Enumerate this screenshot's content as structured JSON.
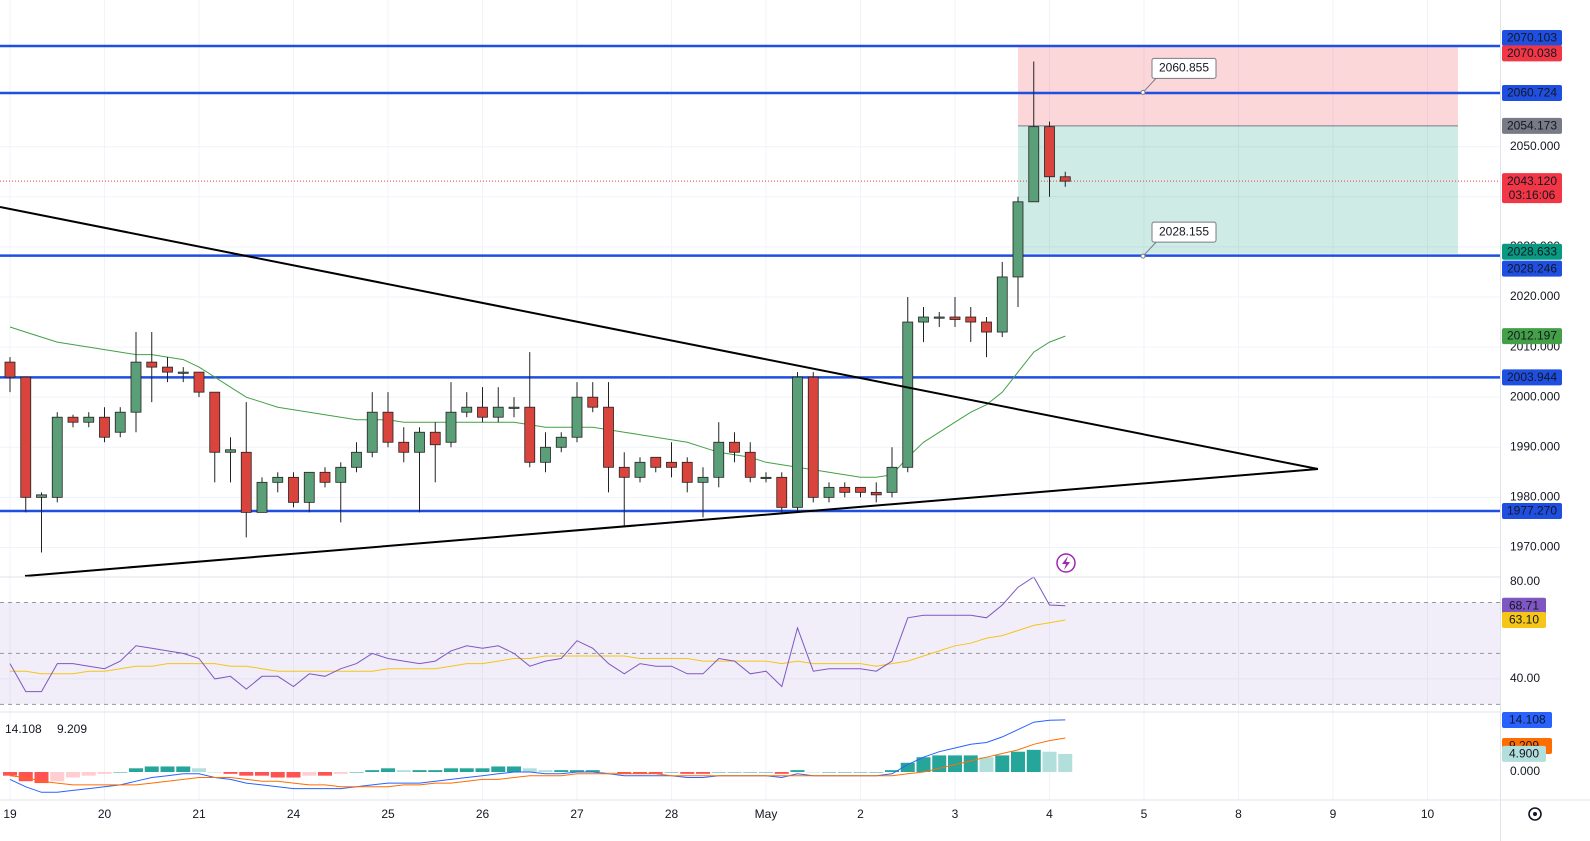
{
  "chart_data": [
    {
      "type": "candlestick",
      "x_labels": [
        "19",
        "20",
        "21",
        "24",
        "25",
        "26",
        "27",
        "28",
        "May",
        "2",
        "3",
        "4",
        "5",
        "8",
        "9",
        "10"
      ],
      "open": [
        2007,
        2004,
        1980,
        1980,
        1996,
        1995,
        1996,
        1993,
        1997,
        2007,
        2006,
        2005,
        2005,
        2001,
        1989,
        1989,
        1977,
        1983,
        1984,
        1979,
        1985,
        1983,
        1986,
        1989,
        1997,
        1991,
        1989,
        1993,
        1991,
        1997,
        1998,
        1996,
        1998,
        1998,
        1987,
        1990,
        1992,
        2000,
        1998,
        1986,
        1984,
        1988,
        1987,
        1987,
        1983,
        1984,
        1991,
        1989,
        1984,
        1984,
        1978,
        2004,
        1980,
        1982,
        1982,
        1981,
        1981,
        1986,
        2015,
        2016,
        2016,
        2016,
        2015,
        2013,
        2024,
        2039,
        2054,
        2044
      ],
      "high": [
        2008,
        2004,
        1981,
        1997,
        1996.5,
        1997,
        1998,
        1998,
        2013,
        2013,
        2008,
        2006,
        2005,
        2001,
        1992,
        1999,
        1984,
        1985,
        1985,
        1985,
        1986,
        1987,
        1991,
        2001,
        2001,
        1994,
        1994,
        1995,
        2003,
        2001,
        2002,
        2002,
        2000,
        2009,
        1993,
        1993,
        2003,
        2003,
        2003,
        1989,
        1988,
        1988,
        1991,
        1988,
        1986,
        1995,
        1993,
        1991,
        1985,
        1985,
        2005,
        2005,
        1983,
        1983,
        1982,
        1983,
        1990,
        2020,
        2018,
        2017,
        2020,
        2018,
        2016,
        2027,
        2040,
        2067,
        2055,
        2045
      ],
      "low": [
        2001,
        1977,
        1969,
        1979,
        1994,
        1994,
        1991,
        1992,
        1993,
        1999,
        2003,
        2003,
        2000,
        1983,
        1983,
        1972,
        1977,
        1981,
        1978,
        1977,
        1982,
        1975,
        1985,
        1988,
        1990,
        1987,
        1977,
        1983,
        1990,
        1996,
        1995,
        1995,
        1996,
        1986,
        1985,
        1989,
        1991,
        1997,
        1981,
        1974,
        1983,
        1985,
        1984,
        1981,
        1976,
        1982,
        1987,
        1983,
        1983,
        1977,
        1977,
        1979,
        1979,
        1980,
        1980,
        1979,
        1980,
        1985,
        2011,
        2014,
        2014,
        2011,
        2008,
        2012,
        2018,
        2039,
        2040,
        2042
      ],
      "close": [
        2004,
        1980,
        1980.5,
        1996,
        1995,
        1996,
        1992,
        1997,
        2007,
        2006,
        2005,
        2005,
        2001,
        1989,
        1989.5,
        1977,
        1983,
        1984,
        1979,
        1985,
        1983,
        1986,
        1989,
        1997,
        1991,
        1989,
        1993,
        1990.5,
        1997,
        1998,
        1996,
        1998,
        1998,
        1987,
        1990,
        1992,
        2000,
        1998,
        1986,
        1984,
        1987,
        1986,
        1986,
        1983,
        1984,
        1991,
        1989,
        1984,
        1984,
        1978,
        2004,
        1980,
        1982,
        1981,
        1981,
        1980.5,
        1986,
        2015,
        2016,
        2016,
        2015.5,
        2015,
        2013,
        2024,
        2039,
        2054,
        2044,
        2043.12
      ],
      "up_color": "#5a9f78",
      "down_color": "#d9453c",
      "ylim": [
        1964.1,
        2079.29
      ],
      "yticks": [
        {
          "value": 1970,
          "label": "1970.000"
        },
        {
          "value": 1980,
          "label": "1980.000"
        },
        {
          "value": 1990,
          "label": "1990.000"
        },
        {
          "value": 2000,
          "label": "2000.000"
        },
        {
          "value": 2010,
          "label": "2010.000"
        },
        {
          "value": 2020,
          "label": "2020.000"
        },
        {
          "value": 2030,
          "label": "2030.000"
        },
        {
          "value": 2040,
          "label": "2040.000"
        },
        {
          "value": 2050,
          "label": "2050.000"
        }
      ],
      "grid": true,
      "ma": {
        "color": "#43a047",
        "label": {
          "value": 2012.197,
          "label": "2012.197"
        },
        "values": [
          2014,
          2013,
          2012,
          2011,
          2010.5,
          2010,
          2009.5,
          2009,
          2008.5,
          2008.5,
          2008,
          2007.5,
          2006,
          2004,
          2002,
          2000,
          1999,
          1998,
          1997.5,
          1997,
          1996.5,
          1996,
          1995.5,
          1995.5,
          1995.5,
          1995,
          1995,
          1995,
          1995,
          1995,
          1995,
          1995,
          1995,
          1994.5,
          1994,
          1994,
          1994,
          1994,
          1993.5,
          1993,
          1992.5,
          1992,
          1991.5,
          1991,
          1990,
          1989,
          1988.5,
          1988,
          1987,
          1986.5,
          1986,
          1985.5,
          1985,
          1984.5,
          1984,
          1984,
          1984.5,
          1988,
          1991,
          1993,
          1995,
          1997,
          1998.5,
          2001,
          2005,
          2009,
          2011,
          2012.197
        ]
      },
      "levels": {
        "color": "#1f4fe0",
        "values": [
          {
            "value": 2070.103,
            "label": "2070.103"
          },
          {
            "value": 2060.724,
            "label": "2060.724"
          },
          {
            "value": 2028.246,
            "label": "2028.246"
          },
          {
            "value": 2003.944,
            "label": "2003.944"
          },
          {
            "value": 1977.27,
            "label": "1977.270"
          }
        ]
      },
      "position": {
        "stop": {
          "value": 2070.038,
          "label": "2070.038"
        },
        "entry": {
          "value": 2054.173,
          "label": "2054.173"
        },
        "target": {
          "value": 2028.633,
          "label": "2028.633"
        }
      },
      "last": {
        "value": 2043.12,
        "label": "2043.120",
        "countdown": "03:16:06"
      },
      "callouts": [
        {
          "value": 2060.855,
          "label": "2060.855"
        },
        {
          "value": 2028.155,
          "label": "2028.155"
        }
      ]
    },
    {
      "type": "line",
      "ylim": [
        27,
        80
      ],
      "yticks": [
        {
          "value": 40,
          "label": "40.00"
        },
        {
          "value": 80,
          "label": "80.00"
        }
      ],
      "bands": [
        70,
        50,
        30
      ],
      "series": [
        {
          "name": "RSI",
          "color": "#7e57c2",
          "last_label": "68.71",
          "values": [
            46,
            35,
            35,
            46,
            46,
            45,
            44,
            47,
            53,
            52,
            51,
            50,
            48,
            40,
            41,
            36,
            41,
            41,
            37,
            42,
            41,
            44,
            46,
            50,
            48,
            47,
            46,
            47,
            51,
            53,
            52,
            53,
            50,
            45,
            47,
            48,
            55,
            52,
            46,
            42,
            46,
            45,
            45,
            42,
            42,
            48,
            47,
            42,
            43,
            37,
            60,
            43,
            44,
            44,
            44,
            43,
            47,
            64,
            65,
            65,
            65,
            65,
            64,
            69,
            76,
            80,
            69,
            68.71
          ]
        },
        {
          "name": "RSI MA",
          "color": "#f5c518",
          "last_label": "63.10",
          "values": [
            43,
            43,
            42,
            42,
            42,
            43,
            43,
            44,
            45,
            45,
            46,
            46,
            46,
            46,
            45,
            45,
            44,
            43,
            43,
            43,
            43,
            43,
            43,
            43,
            44,
            44,
            44,
            44,
            45,
            46,
            46,
            47,
            48,
            48,
            49,
            49,
            49,
            49,
            49,
            49,
            48,
            48,
            48,
            48,
            47,
            47,
            47,
            47,
            47,
            46,
            47,
            46,
            46,
            46,
            46,
            45,
            46,
            47,
            49,
            51,
            53,
            54,
            56,
            57,
            59,
            61,
            62,
            63.1
          ]
        }
      ]
    },
    {
      "type": "macd",
      "ylim": [
        -7.59,
        16.26
      ],
      "yticks": [
        {
          "value": 0,
          "label": "0.000"
        }
      ],
      "histogram": {
        "colors": [
          "#26a69a",
          "#b2dfdb",
          "#ff5252",
          "#ffcdd2"
        ],
        "last_label": "4.900",
        "values": [
          -1,
          -2.5,
          -3,
          -2.5,
          -1.5,
          -1,
          -0.5,
          0,
          1,
          1.5,
          1.5,
          1.5,
          1,
          0,
          -0.5,
          -1,
          -1,
          -1.5,
          -1.5,
          -1,
          -1,
          -0.5,
          0,
          0.5,
          1,
          0.5,
          0.5,
          0.5,
          1,
          1,
          1,
          1.5,
          1.5,
          1,
          0.5,
          0.5,
          0.5,
          0.5,
          0,
          -0.5,
          -0.5,
          -0.5,
          0,
          -0.5,
          -0.5,
          0,
          0,
          0,
          0,
          -0.5,
          0.5,
          0,
          0,
          0,
          0,
          0,
          0.5,
          2.5,
          4,
          4.5,
          4.5,
          4.5,
          4,
          4.5,
          5.5,
          6,
          5.5,
          4.9
        ]
      },
      "series": [
        {
          "name": "MACD",
          "color": "#2962ff",
          "last_label": "14.108",
          "values": [
            -2,
            -4,
            -5.5,
            -5.5,
            -5,
            -4.5,
            -4,
            -3.5,
            -2.5,
            -1.5,
            -1,
            -0.5,
            -0.5,
            -1.5,
            -2,
            -3,
            -3.5,
            -4,
            -4.5,
            -4.5,
            -4.5,
            -4.5,
            -4,
            -3.5,
            -3,
            -3,
            -3,
            -2.5,
            -2,
            -1.5,
            -1,
            -0.5,
            0,
            0,
            -0.5,
            -0.5,
            0,
            0,
            -0.5,
            -1,
            -1,
            -1,
            -1,
            -1.5,
            -1.5,
            -1,
            -1,
            -1,
            -1,
            -1.5,
            -0.5,
            -1,
            -1,
            -1,
            -1,
            -1,
            -0.5,
            2,
            4,
            5.5,
            6.5,
            7.5,
            8,
            9.5,
            11.5,
            13.5,
            14,
            14.108
          ]
        },
        {
          "name": "Signal",
          "color": "#ff6d00",
          "last_label": "9.209",
          "values": [
            -1,
            -1.5,
            -2.5,
            -3,
            -3.5,
            -3.5,
            -3.5,
            -3.5,
            -3.5,
            -3,
            -2.5,
            -2,
            -1.5,
            -1.5,
            -1.5,
            -2,
            -2.5,
            -2.5,
            -3,
            -3.5,
            -3.5,
            -4,
            -4,
            -4,
            -4,
            -3.5,
            -3.5,
            -3,
            -3,
            -2.5,
            -2,
            -2,
            -1.5,
            -1,
            -1,
            -1,
            -0.5,
            -0.5,
            -0.5,
            -0.5,
            -0.5,
            -0.5,
            -1,
            -1,
            -1,
            -1,
            -1,
            -1,
            -1,
            -1,
            -1,
            -1,
            -1,
            -1,
            -1,
            -1,
            -1,
            -0.5,
            0,
            1,
            2,
            3,
            4,
            5,
            6,
            7.5,
            8.5,
            9.209
          ]
        }
      ]
    }
  ]
}
